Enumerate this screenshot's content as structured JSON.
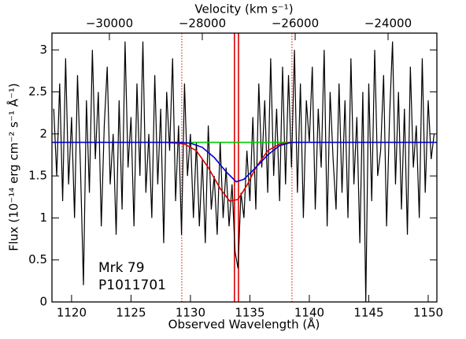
{
  "chart_data": {
    "type": "line",
    "xlabel": "Observed Wavelength (Å)",
    "ylabel": "Flux (10⁻¹⁴ erg cm⁻² s⁻¹ Å⁻¹)",
    "x2label": "Velocity (km s⁻¹)",
    "annotations": [
      "Mrk 79",
      "P1011701"
    ],
    "xlim": [
      1118.35,
      1150.73
    ],
    "xticks": [
      1120,
      1125,
      1130,
      1135,
      1140,
      1145,
      1150
    ],
    "ylim": [
      0,
      3.2
    ],
    "yticks": [
      0,
      0.5,
      1,
      1.5,
      2,
      2.5,
      3
    ],
    "x2lim": [
      -31237,
      -22949
    ],
    "x2ticks": [
      {
        "value": -30000,
        "label": "−30000"
      },
      {
        "value": -28000,
        "label": "−28000"
      },
      {
        "value": -26000,
        "label": "−26000"
      },
      {
        "value": -24000,
        "label": "−24000"
      }
    ],
    "vlines": [
      {
        "x": 1129.27,
        "color": "#dd0000",
        "style": "dotted"
      },
      {
        "x": 1138.54,
        "color": "#dd0000",
        "style": "dotted"
      },
      {
        "x": 1133.7,
        "color": "#dd0000",
        "style": "solid"
      },
      {
        "x": 1134.04,
        "color": "#dd0000",
        "style": "solid"
      }
    ],
    "series": [
      {
        "color": "#000000",
        "x": [
          1118.5,
          1118.75,
          1119,
          1119.25,
          1119.5,
          1119.75,
          1120,
          1120.25,
          1120.5,
          1120.75,
          1121,
          1121.25,
          1121.5,
          1121.75,
          1122,
          1122.25,
          1122.5,
          1122.75,
          1123,
          1123.25,
          1123.5,
          1123.75,
          1124,
          1124.25,
          1124.5,
          1124.75,
          1125,
          1125.25,
          1125.5,
          1125.75,
          1126,
          1126.25,
          1126.5,
          1126.75,
          1127,
          1127.25,
          1127.5,
          1127.75,
          1128,
          1128.25,
          1128.5,
          1128.75,
          1129,
          1129.25,
          1129.5,
          1129.75,
          1130,
          1130.25,
          1130.5,
          1130.75,
          1131,
          1131.25,
          1131.5,
          1131.75,
          1132,
          1132.25,
          1132.5,
          1132.75,
          1133,
          1133.25,
          1133.5,
          1133.75,
          1134,
          1134.25,
          1134.5,
          1134.75,
          1135,
          1135.25,
          1135.5,
          1135.75,
          1136,
          1136.25,
          1136.5,
          1136.75,
          1137,
          1137.25,
          1137.5,
          1137.75,
          1138,
          1138.25,
          1138.5,
          1138.75,
          1139,
          1139.25,
          1139.5,
          1139.75,
          1140,
          1140.25,
          1140.5,
          1140.75,
          1141,
          1141.25,
          1141.5,
          1141.75,
          1142,
          1142.25,
          1142.5,
          1142.75,
          1143,
          1143.25,
          1143.5,
          1143.75,
          1144,
          1144.25,
          1144.5,
          1144.75,
          1145,
          1145.25,
          1145.5,
          1145.75,
          1146,
          1146.25,
          1146.5,
          1146.75,
          1147,
          1147.25,
          1147.5,
          1147.75,
          1148,
          1148.25,
          1148.5,
          1148.75,
          1149,
          1149.25,
          1149.5,
          1149.75,
          1150,
          1150.25,
          1150.5
        ],
        "values": [
          2.3,
          1.5,
          2.6,
          1.2,
          2.9,
          1.4,
          2.2,
          1.0,
          2.7,
          1.6,
          0.2,
          2.4,
          1.3,
          3.0,
          1.7,
          2.5,
          0.9,
          2.1,
          2.8,
          1.4,
          2.0,
          0.8,
          2.4,
          1.1,
          3.1,
          1.6,
          2.2,
          0.9,
          2.6,
          1.5,
          3.1,
          1.3,
          2.0,
          1.0,
          2.7,
          1.4,
          2.3,
          0.7,
          2.5,
          1.8,
          2.9,
          1.2,
          2.1,
          0.8,
          2.6,
          1.5,
          2.0,
          1.0,
          1.9,
          0.9,
          1.7,
          0.7,
          2.1,
          1.1,
          1.5,
          0.8,
          1.9,
          1.0,
          1.6,
          0.9,
          1.4,
          0.6,
          0.4,
          1.3,
          1.0,
          1.8,
          1.2,
          2.2,
          1.1,
          2.6,
          1.6,
          2.4,
          1.3,
          2.9,
          1.5,
          2.3,
          1.2,
          2.8,
          1.4,
          2.7,
          1.6,
          3.0,
          1.3,
          2.6,
          1.0,
          2.4,
          1.9,
          2.8,
          1.1,
          2.3,
          1.6,
          3.0,
          0.9,
          2.5,
          1.7,
          1.1,
          2.6,
          1.3,
          2.4,
          1.0,
          2.9,
          1.4,
          2.2,
          0.7,
          2.5,
          0.0,
          2.6,
          1.2,
          3.0,
          1.5,
          1.8,
          2.7,
          0.9,
          2.2,
          3.1,
          1.4,
          2.5,
          1.1,
          2.3,
          0.8,
          2.8,
          1.6,
          2.1,
          1.0,
          2.9,
          1.3,
          2.4,
          1.7,
          2.0
        ]
      },
      {
        "color": "#00cc00",
        "x": [
          1130,
          1138.5
        ],
        "values": [
          1.9,
          1.9
        ]
      },
      {
        "color": "#dd0000",
        "x": [
          1128,
          1129.5,
          1130.5,
          1131.5,
          1132.5,
          1133.3,
          1134,
          1134.8,
          1135.5,
          1136.5,
          1137.5,
          1138.5
        ],
        "values": [
          1.9,
          1.88,
          1.8,
          1.6,
          1.35,
          1.2,
          1.22,
          1.4,
          1.6,
          1.8,
          1.88,
          1.9
        ]
      },
      {
        "color": "#0000cc",
        "x": [
          1118.35,
          1129,
          1130,
          1131,
          1132,
          1133,
          1133.85,
          1134.5,
          1135.5,
          1136.5,
          1137.5,
          1138.5,
          1150.73
        ],
        "values": [
          1.9,
          1.9,
          1.89,
          1.84,
          1.72,
          1.55,
          1.43,
          1.46,
          1.6,
          1.75,
          1.86,
          1.9,
          1.9
        ]
      }
    ]
  }
}
